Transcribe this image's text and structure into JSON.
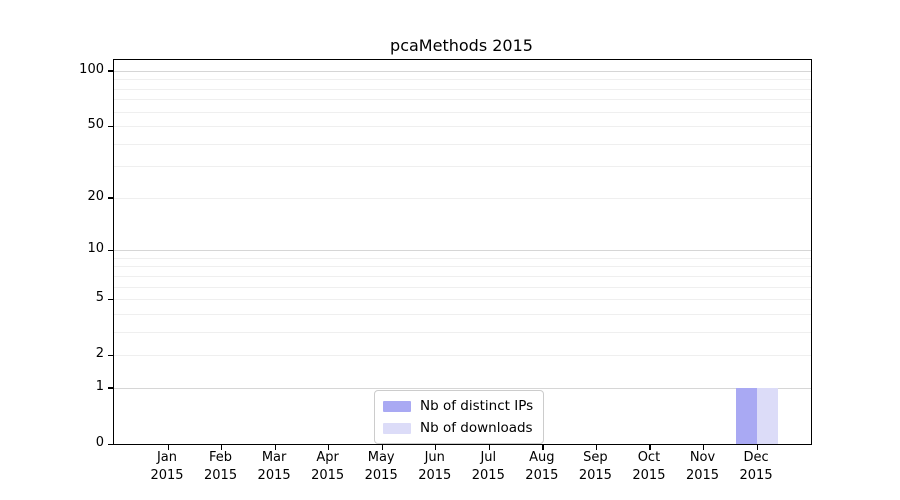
{
  "chart_data": {
    "type": "bar",
    "title": "pcaMethods 2015",
    "categories": [
      "Jan",
      "Feb",
      "Mar",
      "Apr",
      "May",
      "Jun",
      "Jul",
      "Aug",
      "Sep",
      "Oct",
      "Nov",
      "Dec"
    ],
    "year": "2015",
    "series": [
      {
        "name": "Nb of distinct IPs",
        "color": "#a9a9f3",
        "values": [
          0,
          0,
          0,
          0,
          0,
          0,
          0,
          0,
          0,
          0,
          0,
          1
        ]
      },
      {
        "name": "Nb of downloads",
        "color": "#dcdcf8",
        "values": [
          0,
          0,
          0,
          0,
          0,
          0,
          0,
          0,
          0,
          0,
          0,
          1
        ]
      }
    ],
    "xlabel": "",
    "ylabel": "",
    "yscale": "log1p",
    "ylim": [
      0,
      115
    ],
    "yticks": [
      0,
      1,
      2,
      5,
      10,
      20,
      50,
      100
    ],
    "grid_major": [
      1,
      10,
      100
    ],
    "grid_minor": [
      2,
      3,
      4,
      5,
      6,
      7,
      8,
      9,
      20,
      30,
      40,
      50,
      60,
      70,
      80,
      90
    ],
    "grid": true,
    "legend_position": "bottom-center",
    "axis_color": "#000000",
    "background_color": "#ffffff"
  }
}
